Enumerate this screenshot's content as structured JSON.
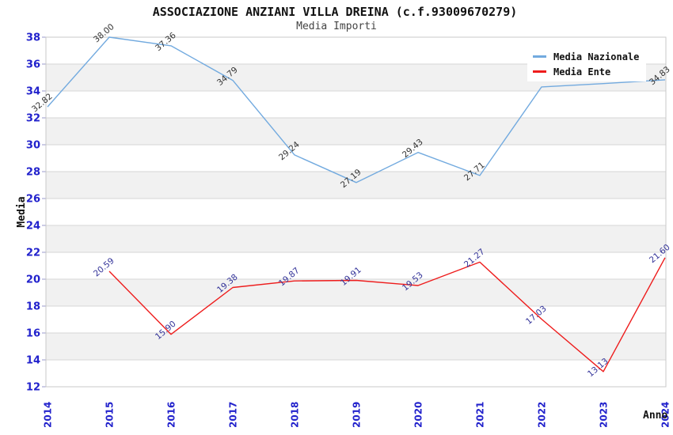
{
  "header": {
    "title": "ASSOCIAZIONE ANZIANI VILLA DREINA (c.f.93009670279)",
    "subtitle": "Media Importi"
  },
  "legend": [
    {
      "label": "Media Nazionale",
      "color": "#72AADF"
    },
    {
      "label": "Media Ente",
      "color": "#EE1C1C"
    }
  ],
  "colors": {
    "axis_tick_label": "#2222CC",
    "band_fill": "#F1F1F1",
    "gridline": "#D6D6D6",
    "plot_border": "#C9C9C9",
    "tick_mark": "#9999CC",
    "national_series": "#72AADF",
    "entity_series": "#EE1C1C",
    "national_label": "#333333",
    "entity_label": "#333399"
  },
  "chart_data": {
    "type": "line",
    "title": "ASSOCIAZIONE ANZIANI VILLA DREINA (c.f.93009670279)",
    "subtitle": "Media Importi",
    "xlabel": "Anno",
    "ylabel": "Media",
    "x": [
      "2014",
      "2015",
      "2016",
      "2017",
      "2018",
      "2019",
      "2020",
      "2021",
      "2022",
      "2023",
      "2024"
    ],
    "ylim": [
      12,
      38
    ],
    "ytick_step": 2,
    "grid": "horizontal-gridlines-with-alternating-gray-bands",
    "legend_position": "top-right-inside",
    "series": [
      {
        "name": "Media Nazionale",
        "color": "#72AADF",
        "label_color": "#333333",
        "values": [
          32.82,
          38.0,
          37.36,
          34.79,
          29.24,
          27.19,
          29.43,
          27.71,
          34.3,
          34.55,
          34.83
        ],
        "labels": [
          "32.82",
          "38.00",
          "37.36",
          "34.79",
          "29.24",
          "27.19",
          "29.43",
          "27.71",
          "",
          "",
          "34.83"
        ],
        "hidden_label_indices": [
          8,
          9
        ]
      },
      {
        "name": "Media Ente",
        "color": "#EE1C1C",
        "label_color": "#333399",
        "values": [
          null,
          20.59,
          15.9,
          19.38,
          19.87,
          19.91,
          19.53,
          21.27,
          17.03,
          13.13,
          21.6
        ],
        "labels": [
          "",
          "20.59",
          "15.90",
          "19.38",
          "19.87",
          "19.91",
          "19.53",
          "21.27",
          "17.03",
          "13.13",
          "21.60"
        ]
      }
    ]
  }
}
